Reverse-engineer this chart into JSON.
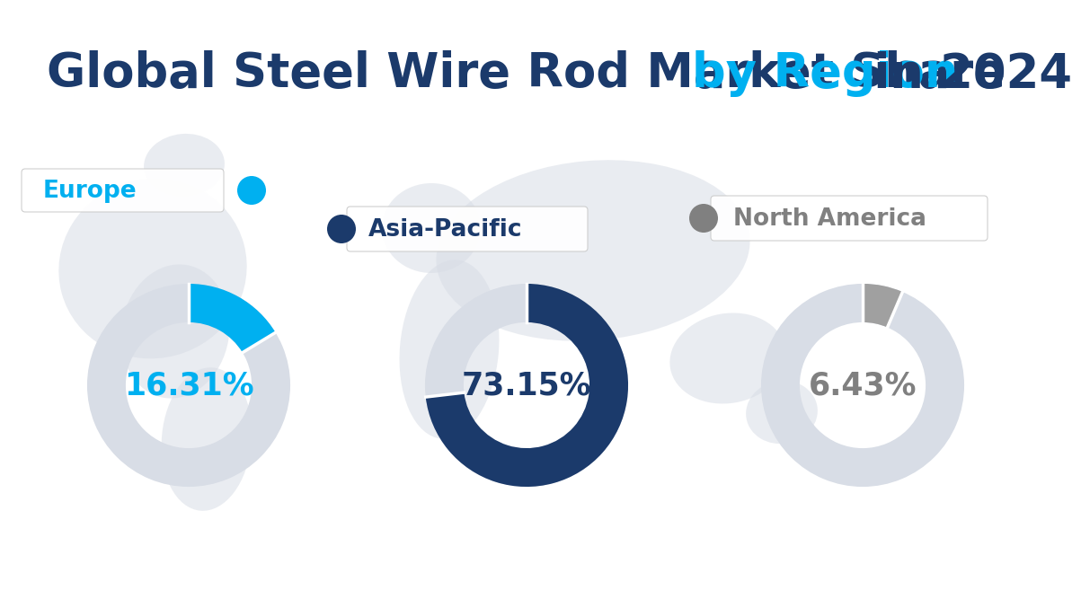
{
  "title_part1": "Global Steel Wire Rod Market Share ",
  "title_part2": "by Region",
  "title_part3": " in 2024",
  "title_color1": "#1b3a6b",
  "title_color2": "#00b0f0",
  "title_color3": "#1b3a6b",
  "title_fontsize": 38,
  "regions": [
    "Europe",
    "Asia-Pacific",
    "North America"
  ],
  "values": [
    16.31,
    73.15,
    6.43
  ],
  "labels": [
    "16.31%",
    "73.15%",
    "6.43%"
  ],
  "active_colors": [
    "#00b0f0",
    "#1b3a6b",
    "#a0a0a0"
  ],
  "inactive_color": "#d8dde6",
  "label_colors": [
    "#00b0f0",
    "#1b3a6b",
    "#808080"
  ],
  "dot_colors": [
    "#00b0f0",
    "#1b3a6b",
    "#808080"
  ],
  "region_label_colors": [
    "#00b0f0",
    "#1b3a6b",
    "#808080"
  ],
  "background_color": "#ffffff",
  "map_color": "#d8dde6",
  "map_alpha": 0.55
}
